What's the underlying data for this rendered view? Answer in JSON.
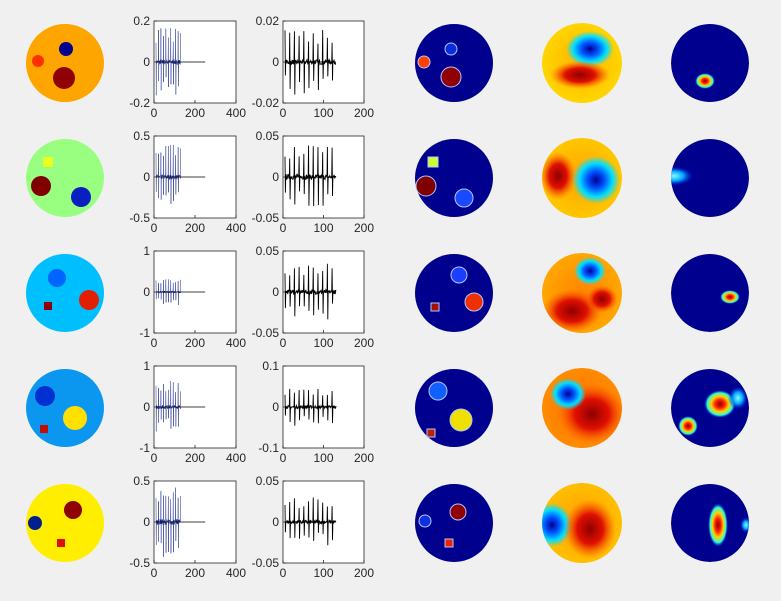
{
  "chart_data": {
    "type": "figure-grid",
    "rows": 5,
    "columns": [
      "phantom",
      "signal_a",
      "signal_b",
      "recon_1",
      "recon_2",
      "recon_3"
    ],
    "signal_a_xlim": [
      0,
      400
    ],
    "signal_a_xticks": [
      "0",
      "200",
      "400"
    ],
    "signal_b_xlim": [
      0,
      200
    ],
    "signal_b_xticks": [
      "0",
      "100",
      "200"
    ],
    "signal_a_ylims": [
      [
        -0.2,
        0.2
      ],
      [
        -0.5,
        0.5
      ],
      [
        -1,
        1
      ],
      [
        -1,
        1
      ],
      [
        -0.5,
        0.5
      ]
    ],
    "signal_a_yticks": [
      [
        "0.2",
        "0",
        "-0.2"
      ],
      [
        "0.5",
        "0",
        "-0.5"
      ],
      [
        "1",
        "0",
        "-1"
      ],
      [
        "1",
        "0",
        "-1"
      ],
      [
        "0.5",
        "0",
        "-0.5"
      ]
    ],
    "signal_b_ylims": [
      [
        -0.02,
        0.02
      ],
      [
        -0.05,
        0.05
      ],
      [
        -0.05,
        0.05
      ],
      [
        -0.1,
        0.1
      ],
      [
        -0.05,
        0.05
      ]
    ],
    "signal_b_yticks": [
      [
        "0.02",
        "0",
        "-0.02"
      ],
      [
        "0.05",
        "0",
        "-0.05"
      ],
      [
        "0.05",
        "0",
        "-0.05"
      ],
      [
        "0.1",
        "0",
        "-0.1"
      ],
      [
        "0.05",
        "0",
        "-0.05"
      ]
    ],
    "signal_a_color": "#1a2a8c",
    "signal_b_color": "#000000",
    "phantom_background_colors": [
      "#ffa500",
      "#99ff80",
      "#00bfff",
      "#0b97f0",
      "#ffee00"
    ],
    "colormap": "jet",
    "colormap_background": "#00008f",
    "figure_background": "#f0f0f0"
  }
}
